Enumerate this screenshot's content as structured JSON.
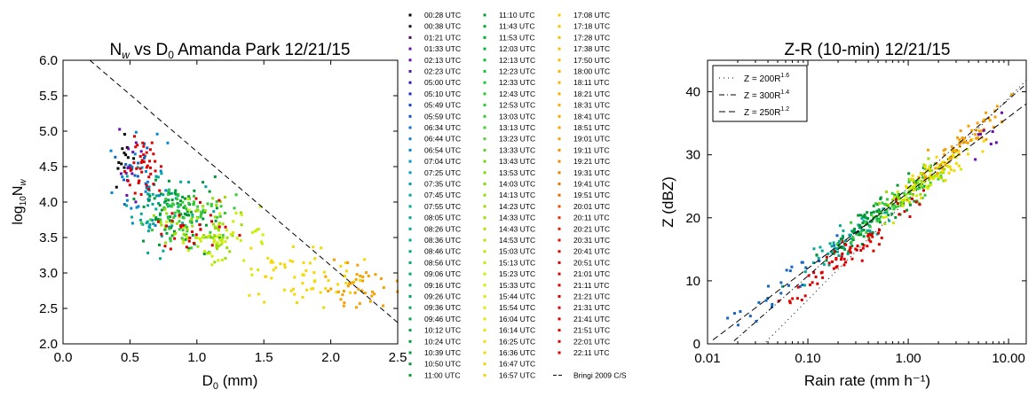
{
  "chart_data": [
    {
      "type": "scatter",
      "title": "N_w vs D_0 Amanda Park 12/21/15",
      "title_parts": {
        "a": "N",
        "sub": "w",
        "b": " vs D",
        "sub2": "0",
        "c": " Amanda Park 12/21/15"
      },
      "xlabel": "D0 (mm)",
      "xlabel_parts": {
        "a": "D",
        "sub": "0",
        "b": " (mm)"
      },
      "ylabel": "log10Nw",
      "ylabel_parts": {
        "a": "log",
        "sub": "10",
        "b": "N",
        "sub2": "w"
      },
      "xlim": [
        0.0,
        2.5
      ],
      "ylim": [
        2.0,
        6.0
      ],
      "xticks": [
        0.0,
        0.5,
        1.0,
        1.5,
        2.0,
        2.5
      ],
      "yticks": [
        2.0,
        2.5,
        3.0,
        3.5,
        4.0,
        4.5,
        5.0,
        5.5,
        6.0
      ],
      "xtick_labels": [
        "0.0",
        "0.5",
        "1.0",
        "1.5",
        "2.0",
        "2.5"
      ],
      "ytick_labels": [
        "2.0",
        "2.5",
        "3.0",
        "3.5",
        "4.0",
        "4.5",
        "5.0",
        "5.5",
        "6.0"
      ],
      "grid": false,
      "reference_line": {
        "name": "Bringi 2009 C/S",
        "style": "dashed",
        "x": [
          0.2,
          2.5
        ],
        "y": [
          6.0,
          2.3
        ]
      },
      "point_clusters": [
        {
          "color": "#000000",
          "cx": 0.45,
          "cy": 4.6,
          "sx": 0.08,
          "sy": 0.3,
          "n": 12
        },
        {
          "color": "#6a0dad",
          "cx": 0.5,
          "cy": 4.4,
          "sx": 0.12,
          "sy": 0.4,
          "n": 14
        },
        {
          "color": "#1565c0",
          "cx": 0.55,
          "cy": 4.4,
          "sx": 0.12,
          "sy": 0.35,
          "n": 16
        },
        {
          "color": "#0288d1",
          "cx": 0.6,
          "cy": 4.3,
          "sx": 0.15,
          "sy": 0.45,
          "n": 30
        },
        {
          "color": "#00a896",
          "cx": 0.75,
          "cy": 3.9,
          "sx": 0.2,
          "sy": 0.35,
          "n": 60
        },
        {
          "color": "#009933",
          "cx": 0.85,
          "cy": 3.9,
          "sx": 0.2,
          "sy": 0.35,
          "n": 70
        },
        {
          "color": "#33cc33",
          "cx": 0.95,
          "cy": 3.8,
          "sx": 0.2,
          "sy": 0.3,
          "n": 70
        },
        {
          "color": "#99dd00",
          "cx": 1.05,
          "cy": 3.6,
          "sx": 0.22,
          "sy": 0.3,
          "n": 60
        },
        {
          "color": "#ccee00",
          "cx": 1.2,
          "cy": 3.5,
          "sx": 0.25,
          "sy": 0.3,
          "n": 50
        },
        {
          "color": "#f5d800",
          "cx": 1.75,
          "cy": 2.9,
          "sx": 0.35,
          "sy": 0.3,
          "n": 60
        },
        {
          "color": "#f5a000",
          "cx": 2.2,
          "cy": 2.8,
          "sx": 0.2,
          "sy": 0.25,
          "n": 40
        },
        {
          "color": "#dd0000",
          "cx": 0.6,
          "cy": 4.5,
          "sx": 0.1,
          "sy": 0.3,
          "n": 40
        },
        {
          "color": "#dd0000",
          "cx": 1.0,
          "cy": 3.6,
          "sx": 0.25,
          "sy": 0.3,
          "n": 30
        }
      ]
    },
    {
      "type": "scatter",
      "title": "Z-R (10-min) 12/21/15",
      "xlabel": "Rain rate (mm h⁻¹)",
      "ylabel": "Z (dBZ)",
      "xscale": "log",
      "xlim": [
        0.01,
        15
      ],
      "ylim": [
        0,
        45
      ],
      "xticks": [
        0.01,
        0.1,
        1.0,
        10.0
      ],
      "xtick_labels": [
        "0.01",
        "0.10",
        "1.00",
        "10.00"
      ],
      "yticks": [
        0,
        10,
        20,
        30,
        40
      ],
      "ytick_labels": [
        "0",
        "10",
        "20",
        "30",
        "40"
      ],
      "grid": false,
      "legend_placement": "top-left",
      "reference_lines": [
        {
          "label": "Z = 200R",
          "exp": "1.6",
          "a": 200,
          "b": 1.6,
          "style": "dotted"
        },
        {
          "label": "Z = 300R",
          "exp": "1.4",
          "a": 300,
          "b": 1.4,
          "style": "dashdot"
        },
        {
          "label": "Z = 250R",
          "exp": "1.2",
          "a": 250,
          "b": 1.2,
          "style": "dashed"
        }
      ],
      "point_clusters": [
        {
          "color": "#1565c0",
          "lr": -1.2,
          "slr": 0.4,
          "n": 30
        },
        {
          "color": "#00a896",
          "lr": -0.6,
          "slr": 0.35,
          "n": 60
        },
        {
          "color": "#009933",
          "lr": -0.3,
          "slr": 0.3,
          "n": 70
        },
        {
          "color": "#33cc33",
          "lr": -0.1,
          "slr": 0.3,
          "n": 70
        },
        {
          "color": "#99dd00",
          "lr": 0.1,
          "slr": 0.25,
          "n": 50
        },
        {
          "color": "#ccee00",
          "lr": 0.15,
          "slr": 0.25,
          "n": 40
        },
        {
          "color": "#f5d800",
          "lr": 0.3,
          "slr": 0.25,
          "n": 40
        },
        {
          "color": "#f5a000",
          "lr": 0.55,
          "slr": 0.25,
          "n": 60
        },
        {
          "color": "#dd0000",
          "lr": -0.6,
          "slr": 0.4,
          "n": 70
        },
        {
          "color": "#6a0dad",
          "lr": 0.85,
          "slr": 0.12,
          "n": 8
        }
      ]
    }
  ],
  "legend": {
    "entries": [
      {
        "label": "00:28 UTC",
        "color": "#000000"
      },
      {
        "label": "00:38 UTC",
        "color": "#1a0a1a"
      },
      {
        "label": "01:21 UTC",
        "color": "#4b0a5a"
      },
      {
        "label": "01:33 UTC",
        "color": "#6a0dad"
      },
      {
        "label": "02:13 UTC",
        "color": "#6a0dad"
      },
      {
        "label": "02:23 UTC",
        "color": "#5a1aa8"
      },
      {
        "label": "05:00 UTC",
        "color": "#2a1ac0"
      },
      {
        "label": "05:10 UTC",
        "color": "#1a2acf"
      },
      {
        "label": "05:49 UTC",
        "color": "#1040d0"
      },
      {
        "label": "05:59 UTC",
        "color": "#0a50d0"
      },
      {
        "label": "06:34 UTC",
        "color": "#0a70d0"
      },
      {
        "label": "06:44 UTC",
        "color": "#0a80d0"
      },
      {
        "label": "06:54 UTC",
        "color": "#0288d1"
      },
      {
        "label": "07:04 UTC",
        "color": "#0298c8"
      },
      {
        "label": "07:25 UTC",
        "color": "#02a0c0"
      },
      {
        "label": "07:35 UTC",
        "color": "#02a0b0"
      },
      {
        "label": "07:45 UTC",
        "color": "#02a0a8"
      },
      {
        "label": "07:55 UTC",
        "color": "#00a8a0"
      },
      {
        "label": "08:05 UTC",
        "color": "#00a896"
      },
      {
        "label": "08:26 UTC",
        "color": "#00a890"
      },
      {
        "label": "08:36 UTC",
        "color": "#00a888"
      },
      {
        "label": "08:46 UTC",
        "color": "#00a880"
      },
      {
        "label": "08:56 UTC",
        "color": "#00a878"
      },
      {
        "label": "09:06 UTC",
        "color": "#00a870"
      },
      {
        "label": "09:16 UTC",
        "color": "#00a868"
      },
      {
        "label": "09:26 UTC",
        "color": "#00a860"
      },
      {
        "label": "09:36 UTC",
        "color": "#00a858"
      },
      {
        "label": "09:46 UTC",
        "color": "#00a850"
      },
      {
        "label": "10:12 UTC",
        "color": "#00a048"
      },
      {
        "label": "10:24 UTC",
        "color": "#009a40"
      },
      {
        "label": "10:39 UTC",
        "color": "#009a3a"
      },
      {
        "label": "10:50 UTC",
        "color": "#009933"
      },
      {
        "label": "11:00 UTC",
        "color": "#00a030"
      },
      {
        "label": "11:10 UTC",
        "color": "#00a030"
      },
      {
        "label": "11:43 UTC",
        "color": "#00aa30"
      },
      {
        "label": "11:53 UTC",
        "color": "#00b030"
      },
      {
        "label": "12:03 UTC",
        "color": "#00b830"
      },
      {
        "label": "12:13 UTC",
        "color": "#00c030"
      },
      {
        "label": "12:23 UTC",
        "color": "#10c830"
      },
      {
        "label": "12:33 UTC",
        "color": "#10cc30"
      },
      {
        "label": "12:43 UTC",
        "color": "#20cc30"
      },
      {
        "label": "12:53 UTC",
        "color": "#28cc30"
      },
      {
        "label": "13:03 UTC",
        "color": "#33cc33"
      },
      {
        "label": "13:13 UTC",
        "color": "#40cc30"
      },
      {
        "label": "13:23 UTC",
        "color": "#50d030"
      },
      {
        "label": "13:33 UTC",
        "color": "#60d020"
      },
      {
        "label": "13:43 UTC",
        "color": "#70d410"
      },
      {
        "label": "13:53 UTC",
        "color": "#80d810"
      },
      {
        "label": "14:03 UTC",
        "color": "#88d808"
      },
      {
        "label": "14:13 UTC",
        "color": "#90dc00"
      },
      {
        "label": "14:23 UTC",
        "color": "#99dd00"
      },
      {
        "label": "14:33 UTC",
        "color": "#a0e000"
      },
      {
        "label": "14:43 UTC",
        "color": "#a8e400"
      },
      {
        "label": "14:53 UTC",
        "color": "#b0e800"
      },
      {
        "label": "15:03 UTC",
        "color": "#b8ea00"
      },
      {
        "label": "15:13 UTC",
        "color": "#c0ec00"
      },
      {
        "label": "15:23 UTC",
        "color": "#c8ee00"
      },
      {
        "label": "15:33 UTC",
        "color": "#ccee00"
      },
      {
        "label": "15:44 UTC",
        "color": "#d8ec00"
      },
      {
        "label": "15:54 UTC",
        "color": "#e0e800"
      },
      {
        "label": "16:04 UTC",
        "color": "#e8e400"
      },
      {
        "label": "16:14 UTC",
        "color": "#f0e000"
      },
      {
        "label": "16:25 UTC",
        "color": "#f5dc00"
      },
      {
        "label": "16:36 UTC",
        "color": "#f5d800"
      },
      {
        "label": "16:47 UTC",
        "color": "#f5d400"
      },
      {
        "label": "16:57 UTC",
        "color": "#f5d000"
      },
      {
        "label": "17:08 UTC",
        "color": "#f5cc00"
      },
      {
        "label": "17:18 UTC",
        "color": "#f5c800"
      },
      {
        "label": "17:28 UTC",
        "color": "#f5c400"
      },
      {
        "label": "17:38 UTC",
        "color": "#f5c000"
      },
      {
        "label": "17:50 UTC",
        "color": "#f5bc00"
      },
      {
        "label": "18:00 UTC",
        "color": "#f5b800"
      },
      {
        "label": "18:11 UTC",
        "color": "#f5b400"
      },
      {
        "label": "18:21 UTC",
        "color": "#f5b000"
      },
      {
        "label": "18:31 UTC",
        "color": "#f5ac00"
      },
      {
        "label": "18:41 UTC",
        "color": "#f5a800"
      },
      {
        "label": "18:51 UTC",
        "color": "#f5a400"
      },
      {
        "label": "19:01 UTC",
        "color": "#f5a000"
      },
      {
        "label": "19:11 UTC",
        "color": "#f29600"
      },
      {
        "label": "19:21 UTC",
        "color": "#f08c00"
      },
      {
        "label": "19:31 UTC",
        "color": "#ee8200"
      },
      {
        "label": "19:41 UTC",
        "color": "#ec7800"
      },
      {
        "label": "19:51 UTC",
        "color": "#ea6c00"
      },
      {
        "label": "20:01 UTC",
        "color": "#e85000"
      },
      {
        "label": "20:11 UTC",
        "color": "#e63800"
      },
      {
        "label": "20:21 UTC",
        "color": "#e42000"
      },
      {
        "label": "20:31 UTC",
        "color": "#e21000"
      },
      {
        "label": "20:41 UTC",
        "color": "#e00800"
      },
      {
        "label": "20:51 UTC",
        "color": "#dd0000"
      },
      {
        "label": "21:01 UTC",
        "color": "#dd0000"
      },
      {
        "label": "21:11 UTC",
        "color": "#dd0000"
      },
      {
        "label": "21:21 UTC",
        "color": "#dd0000"
      },
      {
        "label": "21:31 UTC",
        "color": "#dd0000"
      },
      {
        "label": "21:41 UTC",
        "color": "#dd0000"
      },
      {
        "label": "21:51 UTC",
        "color": "#dd0000"
      },
      {
        "label": "22:01 UTC",
        "color": "#dd0000"
      },
      {
        "label": "22:11 UTC",
        "color": "#dd0000"
      }
    ],
    "line_entry": "Bringi 2009 C/S"
  }
}
